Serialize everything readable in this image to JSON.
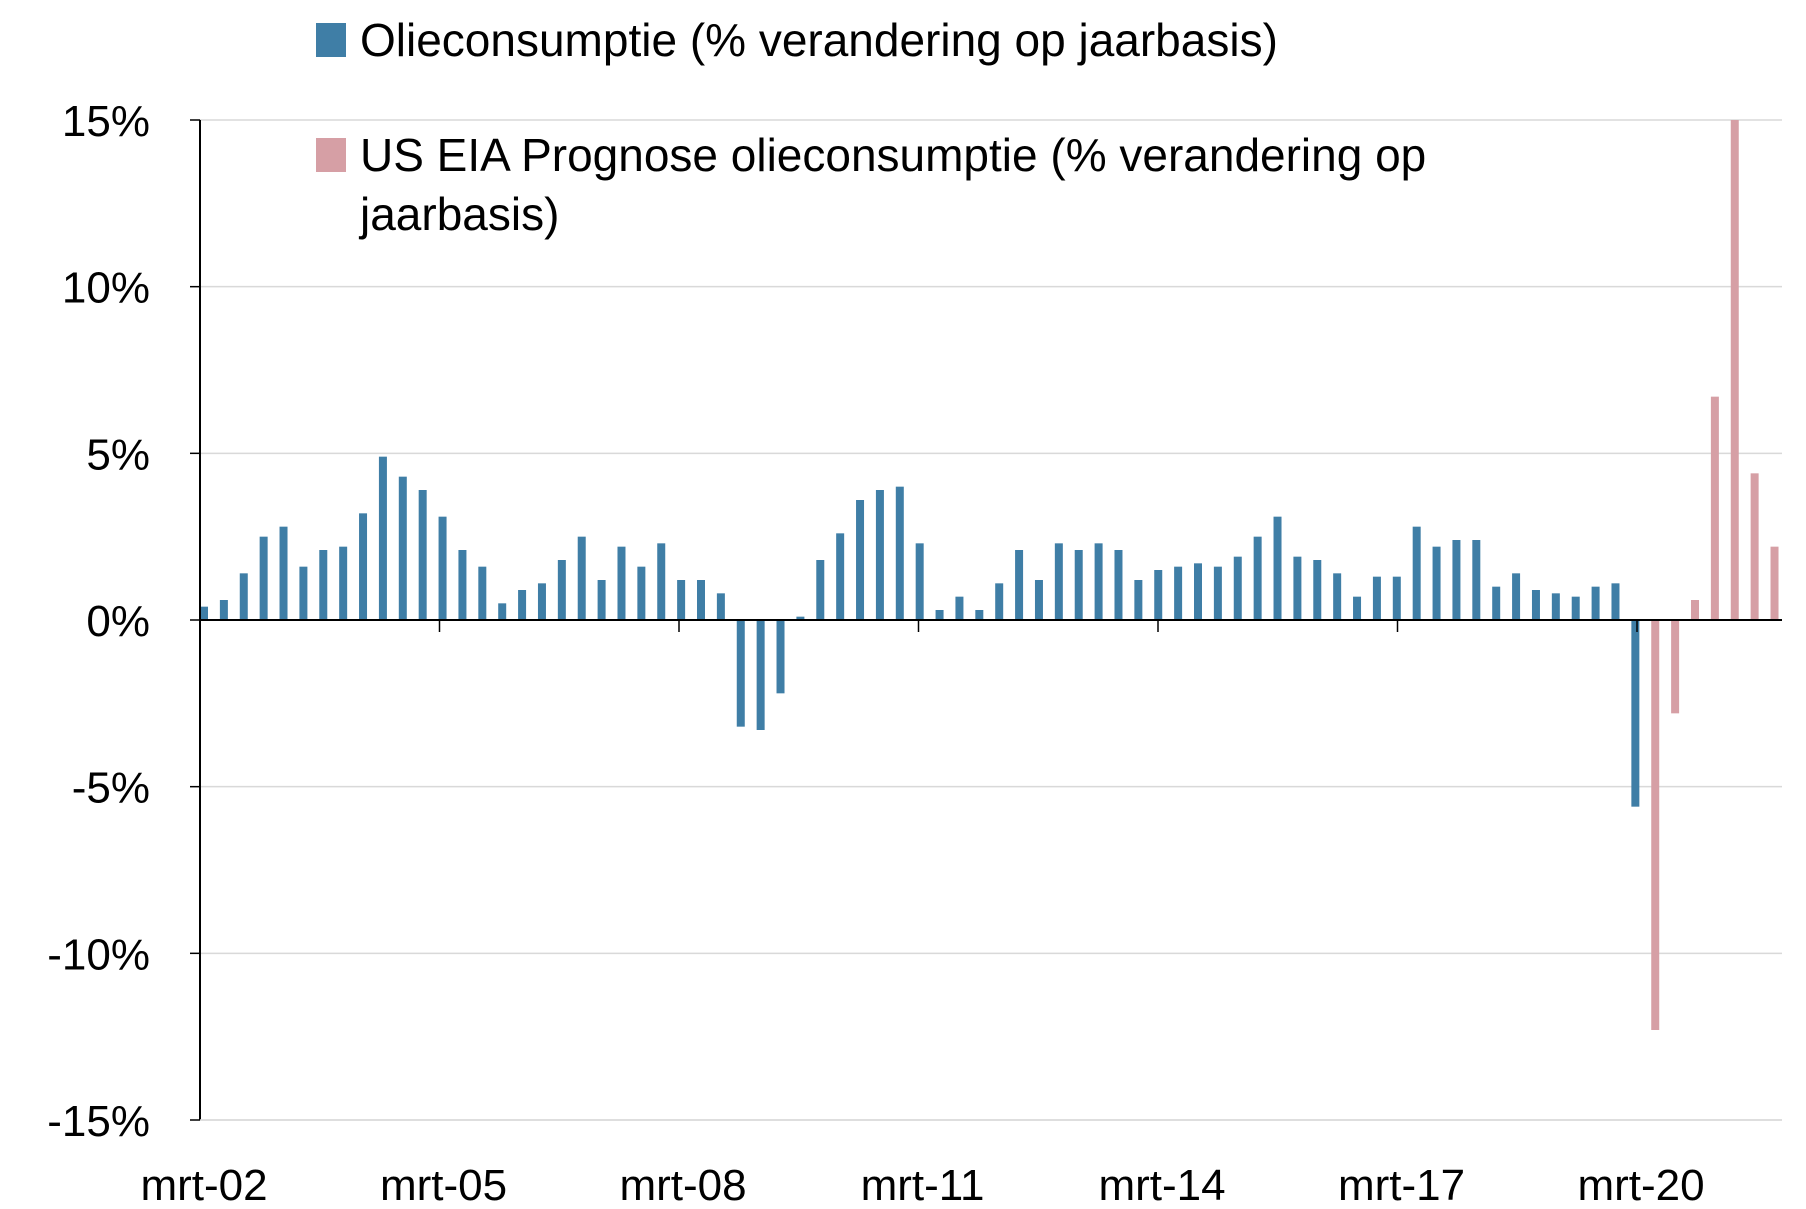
{
  "chart_data": {
    "type": "bar",
    "ylim": [
      -15,
      15
    ],
    "yticks": [
      "15%",
      "10%",
      "5%",
      "0%",
      "-5%",
      "-10%",
      "-15%"
    ],
    "ytick_values": [
      15,
      10,
      5,
      0,
      -5,
      -10,
      -15
    ],
    "xtick_labels": [
      "mrt-02",
      "mrt-05",
      "mrt-08",
      "mrt-11",
      "mrt-14",
      "mrt-17",
      "mrt-20"
    ],
    "grid": true,
    "legend_position": "top",
    "series": [
      {
        "name": "Olieconsumptie (% verandering op jaarbasis)",
        "color": "#3f7ea6",
        "values": [
          0.4,
          0.6,
          1.4,
          2.5,
          2.8,
          1.6,
          2.1,
          2.2,
          3.2,
          4.9,
          4.3,
          3.9,
          3.1,
          2.1,
          1.6,
          0.5,
          0.9,
          1.1,
          1.8,
          2.5,
          1.2,
          2.2,
          1.6,
          2.3,
          1.2,
          1.2,
          0.8,
          -3.2,
          -3.3,
          -2.2,
          0.1,
          1.8,
          2.6,
          3.6,
          3.9,
          4.0,
          2.3,
          0.3,
          0.7,
          0.3,
          1.1,
          2.1,
          1.2,
          2.3,
          2.1,
          2.3,
          2.1,
          1.2,
          1.5,
          1.6,
          1.7,
          1.6,
          1.9,
          2.5,
          3.1,
          1.9,
          1.8,
          1.4,
          0.7,
          1.3,
          1.3,
          2.8,
          2.2,
          2.4,
          2.4,
          1.0,
          1.4,
          0.9,
          0.8,
          0.7,
          1.0,
          1.1,
          -5.6,
          null,
          null,
          null,
          null,
          null,
          null,
          null
        ]
      },
      {
        "name": "US EIA Prognose olieconsumptie  (% verandering op jaarbasis)",
        "color": "#d69fa5",
        "values": [
          null,
          null,
          null,
          null,
          null,
          null,
          null,
          null,
          null,
          null,
          null,
          null,
          null,
          null,
          null,
          null,
          null,
          null,
          null,
          null,
          null,
          null,
          null,
          null,
          null,
          null,
          null,
          null,
          null,
          null,
          null,
          null,
          null,
          null,
          null,
          null,
          null,
          null,
          null,
          null,
          null,
          null,
          null,
          null,
          null,
          null,
          null,
          null,
          null,
          null,
          null,
          null,
          null,
          null,
          null,
          null,
          null,
          null,
          null,
          null,
          null,
          null,
          null,
          null,
          null,
          null,
          null,
          null,
          null,
          null,
          null,
          null,
          null,
          -12.3,
          -2.8,
          0.6,
          6.7,
          15.0,
          4.4,
          2.2
        ]
      }
    ]
  }
}
